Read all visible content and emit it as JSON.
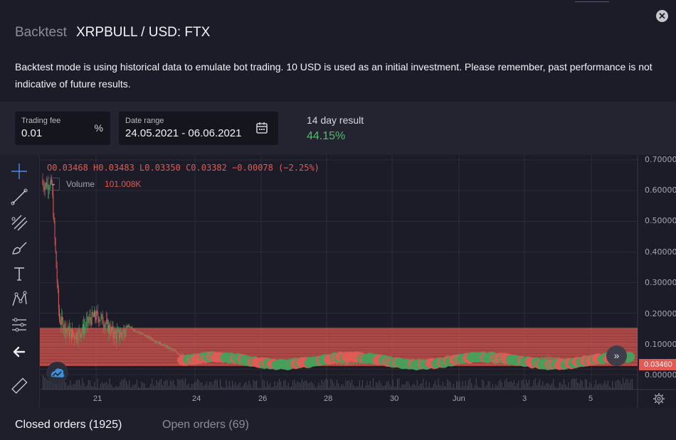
{
  "header": {
    "title_prefix": "Backtest",
    "title_pair": "XRPBULL / USD: FTX",
    "close_glyph": "✕",
    "description": "Backtest mode is using historical data to emulate bot trading. 10 USD is used as an initial investment. Please remember, past performance is not indicative of future results."
  },
  "controls": {
    "fee_label": "Trading fee",
    "fee_value": "0.01",
    "fee_unit": "%",
    "date_label": "Date range",
    "date_value": "24.05.2021 - 06.06.2021",
    "date_icon": "calendar-icon",
    "result_label": "14 day result",
    "result_value": "44.15%",
    "result_color": "#4fbf6a"
  },
  "chart": {
    "ohlc": "O0.03468 H0.03483 L0.03350 C0.03382 −0.00078 (−2.25%)",
    "volume_label": "Volume",
    "volume_value": "101.008K",
    "volume_toggle": "⌄",
    "last_price": "0.03460",
    "scroll_glyph": "»",
    "up_color": "#4a9e5c",
    "down_color": "#e05b55",
    "band_color": "#e05b55"
  },
  "chart_data": {
    "type": "candlestick",
    "y_tick_labels": [
      "0.70000",
      "0.60000",
      "0.50000",
      "0.40000",
      "0.30000",
      "0.20000",
      "0.10000",
      "0.03460",
      "0.00000"
    ],
    "x_tick_labels": [
      "21",
      "24",
      "26",
      "28",
      "30",
      "Jun",
      "3",
      "5"
    ],
    "ylim": [
      0,
      0.7
    ],
    "last_close": 0.0346,
    "grid": true
  },
  "tabs": [
    {
      "label": "Closed orders (1925)"
    },
    {
      "label": "Open orders (69)"
    }
  ],
  "tools": [
    "crosshair-icon",
    "trend-line-icon",
    "pitchfork-icon",
    "brush-icon",
    "text-tool-icon",
    "pattern-icon",
    "measure-lines-icon",
    "back-arrow-icon",
    "ruler-icon"
  ]
}
